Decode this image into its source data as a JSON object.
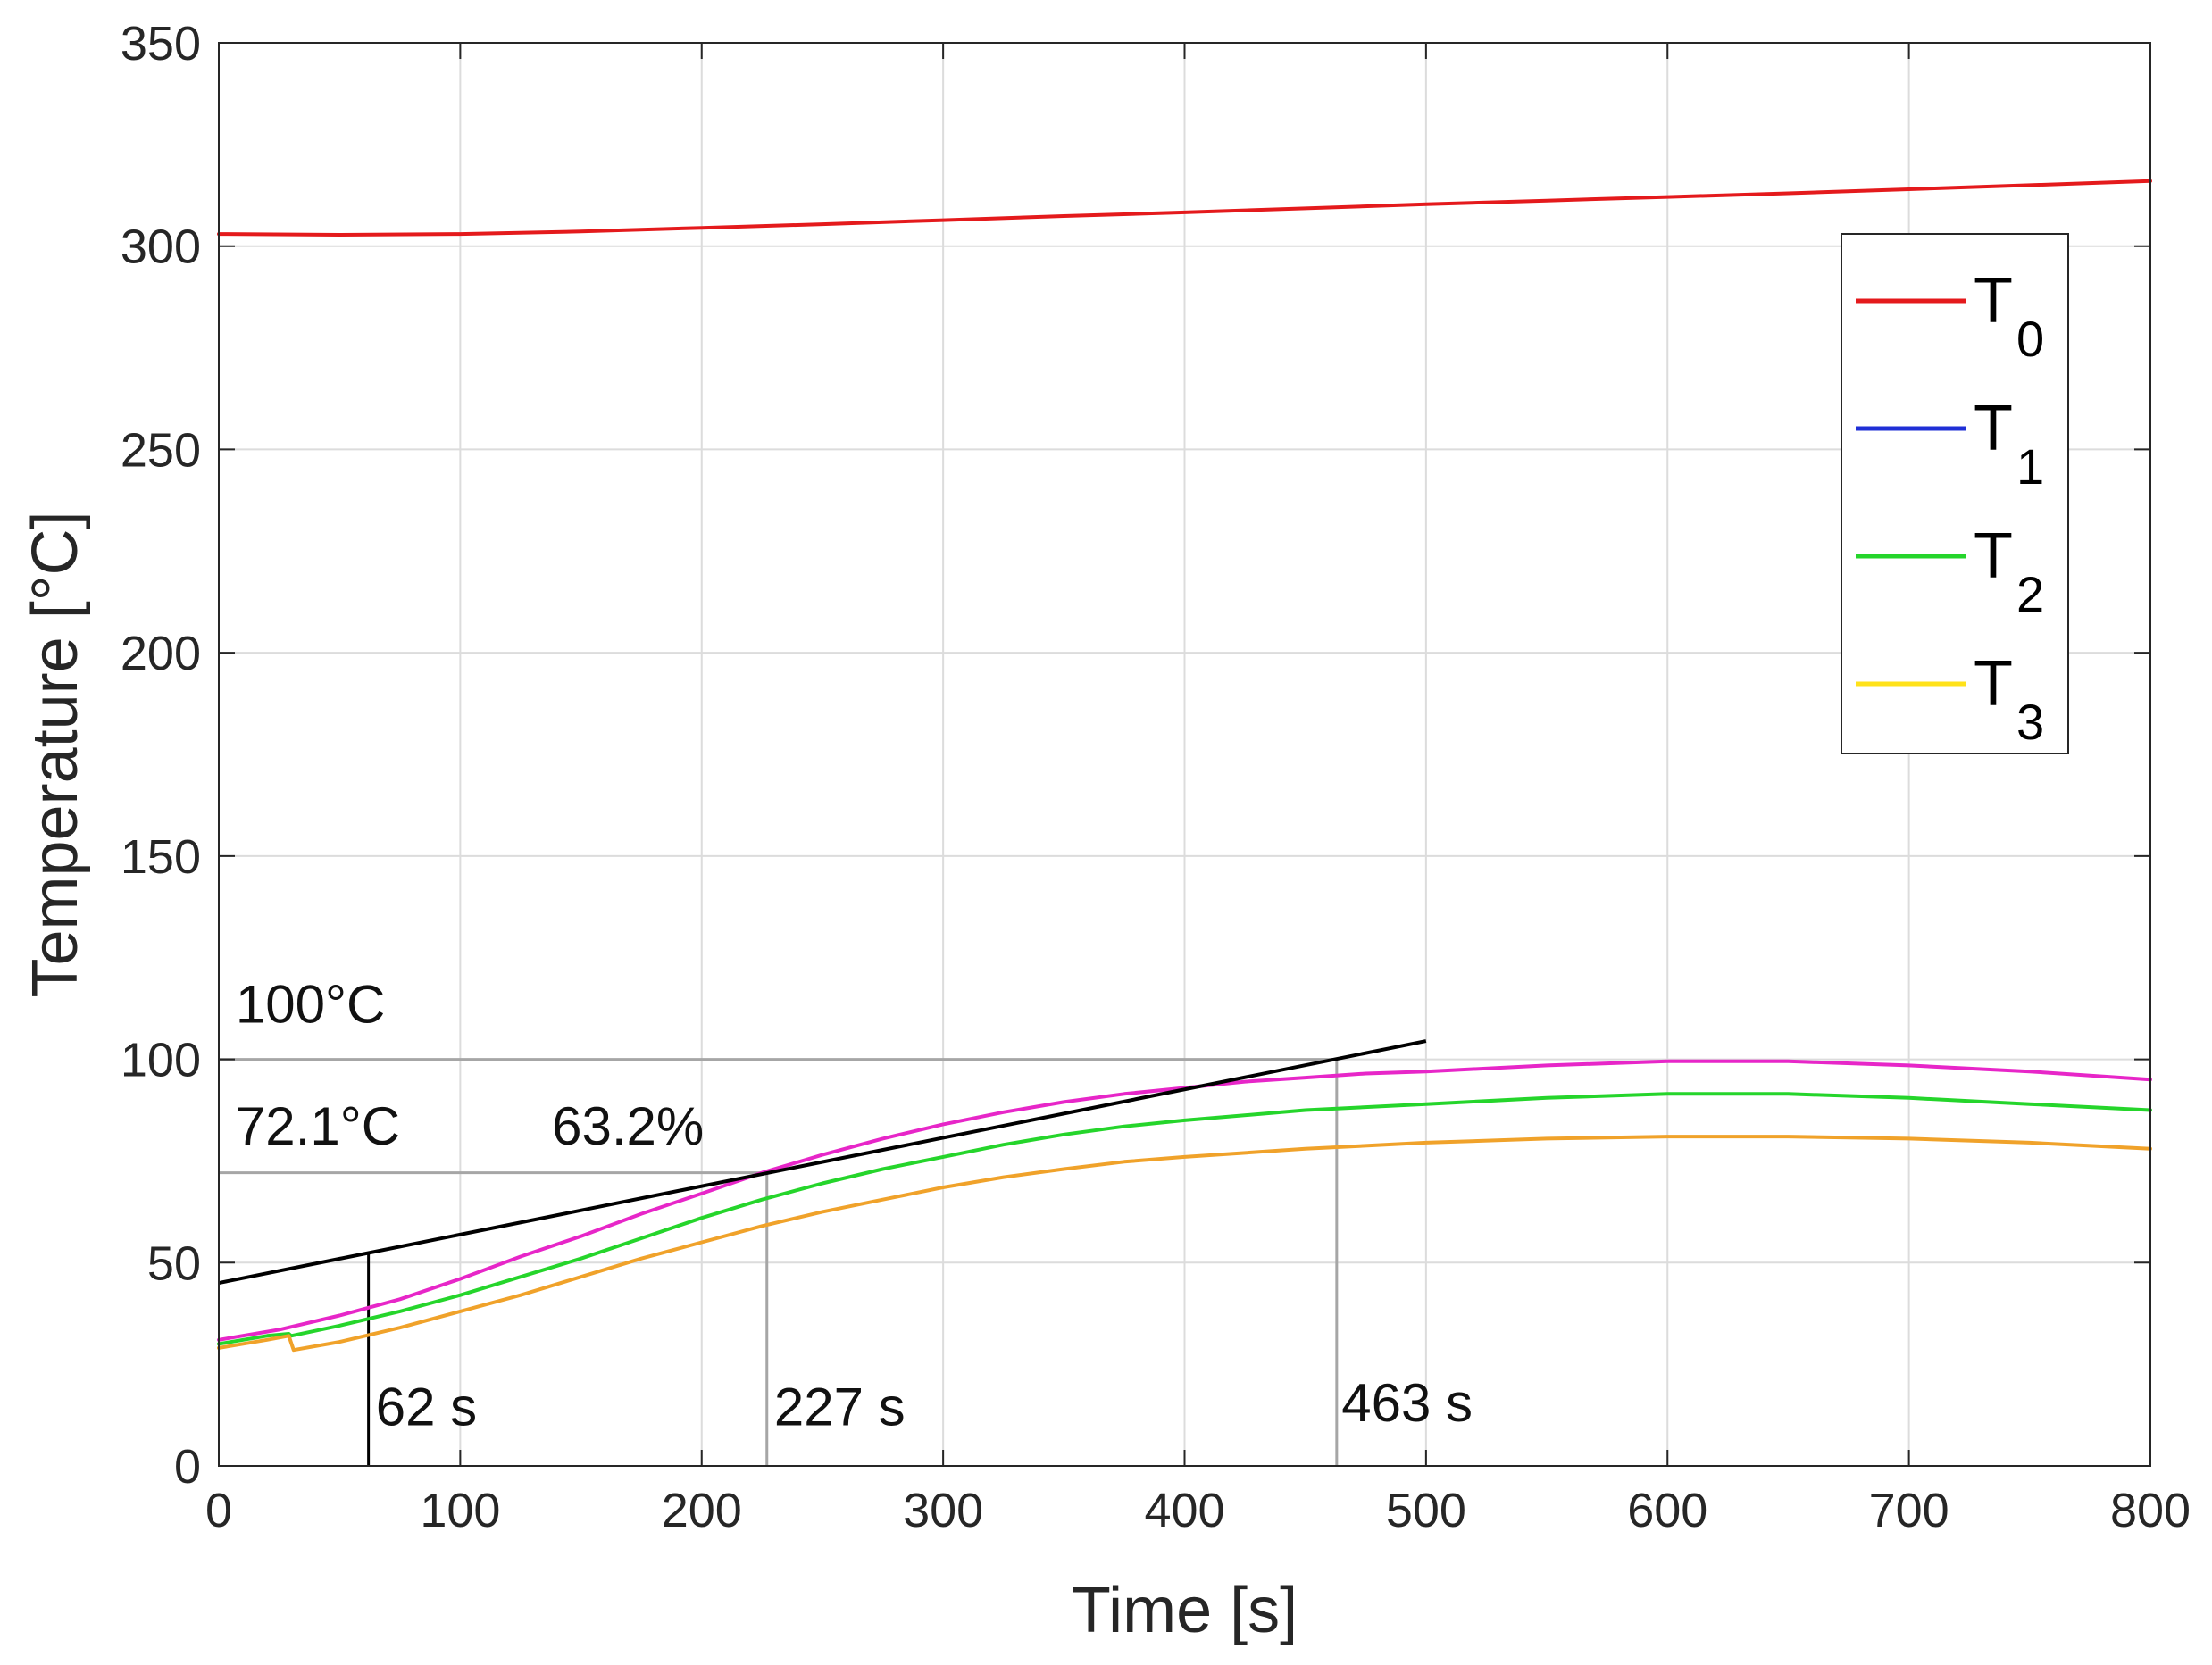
{
  "chart_data": {
    "type": "line",
    "title": "",
    "xlabel": "Time [s]",
    "ylabel": "Temperature [°C]",
    "xlim": [
      0,
      800
    ],
    "ylim": [
      0,
      350
    ],
    "xticks": [
      0,
      100,
      200,
      300,
      400,
      500,
      600,
      700,
      800
    ],
    "yticks": [
      0,
      50,
      100,
      150,
      200,
      250,
      300,
      350
    ],
    "grid": true,
    "legend_position": "top-right",
    "series": [
      {
        "name": "T0",
        "label_main": "T",
        "label_sub": "0",
        "color": "#e41a1c",
        "legend_color": "#e41a1c",
        "x": [
          0,
          50,
          100,
          150,
          200,
          250,
          300,
          350,
          400,
          450,
          500,
          550,
          600,
          650,
          700,
          750,
          800
        ],
        "y": [
          303,
          302.8,
          303,
          303.6,
          304.5,
          305.4,
          306.4,
          307.4,
          308.3,
          309.3,
          310.3,
          311.2,
          312.1,
          313,
          314,
          315,
          316
        ]
      },
      {
        "name": "T1",
        "label_main": "T",
        "label_sub": "1",
        "color": "#e726c8",
        "legend_color": "#1f2fd6",
        "x": [
          0,
          25,
          50,
          75,
          100,
          125,
          150,
          175,
          200,
          225,
          250,
          275,
          300,
          325,
          350,
          375,
          400,
          425,
          450,
          475,
          500,
          550,
          600,
          650,
          700,
          750,
          800
        ],
        "y": [
          31,
          33.5,
          37,
          41,
          46,
          51.5,
          56.5,
          62,
          67,
          72.1,
          76.5,
          80.5,
          84,
          87,
          89.5,
          91.5,
          93,
          94.5,
          95.5,
          96.5,
          97,
          98.5,
          99.5,
          99.5,
          98.5,
          97,
          95
        ]
      },
      {
        "name": "T2",
        "label_main": "T",
        "label_sub": "2",
        "color": "#25d52b",
        "legend_color": "#25d52b",
        "x": [
          0,
          20,
          29,
          30,
          50,
          75,
          100,
          125,
          150,
          175,
          200,
          225,
          250,
          275,
          300,
          325,
          350,
          375,
          400,
          450,
          500,
          550,
          600,
          650,
          700,
          750,
          800
        ],
        "y": [
          30,
          32,
          32.5,
          32,
          34.5,
          38,
          42,
          46.5,
          51,
          56,
          61,
          65.5,
          69.5,
          73,
          76,
          79,
          81.5,
          83.5,
          85,
          87.5,
          89,
          90.5,
          91.5,
          91.5,
          90.5,
          89,
          87.5
        ]
      },
      {
        "name": "T3",
        "label_main": "T",
        "label_sub": "3",
        "color": "#f0a22a",
        "legend_color": "#ffe21a",
        "x": [
          0,
          20,
          29,
          31,
          50,
          75,
          100,
          125,
          150,
          175,
          200,
          225,
          250,
          275,
          300,
          325,
          350,
          375,
          400,
          450,
          500,
          550,
          600,
          650,
          700,
          750,
          800
        ],
        "y": [
          29,
          31,
          32,
          28.5,
          30.5,
          34,
          38,
          42,
          46.5,
          51,
          55,
          59,
          62.5,
          65.5,
          68.5,
          71,
          73,
          74.8,
          76,
          78,
          79.5,
          80.5,
          81,
          81,
          80.5,
          79.5,
          78
        ]
      }
    ],
    "tangent_line": {
      "color": "#000000",
      "x": [
        0,
        500
      ],
      "y": [
        45,
        104.5
      ]
    },
    "reference_lines": {
      "color": "#a6a6a6",
      "horizontal": [
        {
          "y": 100,
          "x_end": 463
        },
        {
          "y": 72.1,
          "x_end": 227
        }
      ],
      "vertical": [
        {
          "x": 227,
          "y_top": 72.1
        },
        {
          "x": 463,
          "y_top": 100
        }
      ],
      "tick_62": {
        "x": 62,
        "y_top": 52.4,
        "color": "#000000"
      }
    },
    "annotations": [
      {
        "text": "100°C",
        "x": 7,
        "y": 109
      },
      {
        "text": "72.1°C",
        "x": 7,
        "y": 79
      },
      {
        "text": "63.2%",
        "x": 138,
        "y": 79
      },
      {
        "text": "62 s",
        "x": 65,
        "y": 10
      },
      {
        "text": "227 s",
        "x": 230,
        "y": 10
      },
      {
        "text": "463 s",
        "x": 465,
        "y": 11
      }
    ]
  }
}
